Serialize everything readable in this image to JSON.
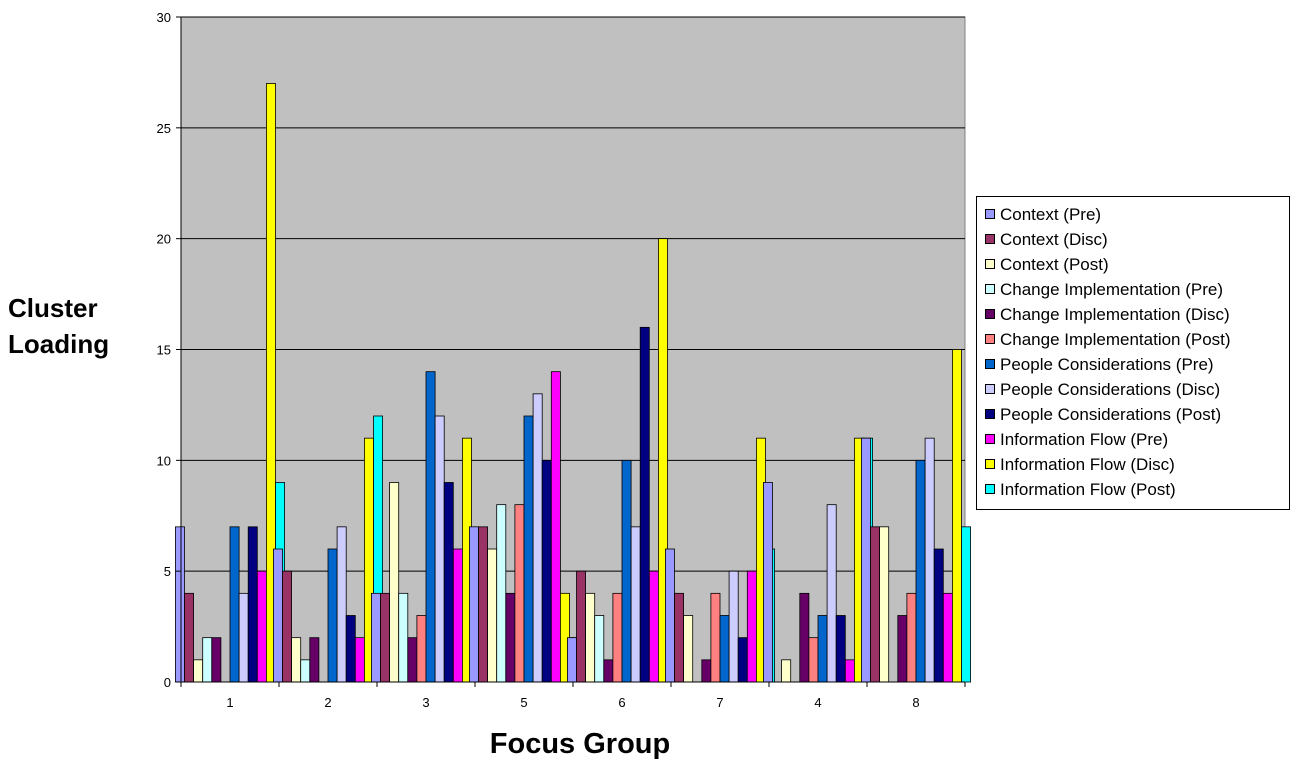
{
  "chart_data": {
    "type": "bar",
    "title": "",
    "xlabel": "Focus Group",
    "ylabel_lines": [
      "Cluster",
      "Loading"
    ],
    "categories": [
      "1",
      "2",
      "3",
      "5",
      "6",
      "7",
      "4",
      "8"
    ],
    "ylim": [
      0,
      30
    ],
    "yticks": [
      0,
      5,
      10,
      15,
      20,
      25,
      30
    ],
    "grid": true,
    "plot_background": "#C0C0C0",
    "legend_position": "right",
    "series": [
      {
        "name": "Context (Pre)",
        "color": "#9999FF",
        "values": [
          7,
          6,
          4,
          7,
          2,
          6,
          9,
          11
        ]
      },
      {
        "name": "Context (Disc)",
        "color": "#993366",
        "values": [
          4,
          5,
          4,
          7,
          5,
          4,
          0,
          7
        ]
      },
      {
        "name": "Context (Post)",
        "color": "#FFFFCC",
        "values": [
          1,
          2,
          9,
          6,
          4,
          3,
          1,
          7
        ]
      },
      {
        "name": "Change Implementation (Pre)",
        "color": "#CCFFFF",
        "values": [
          2,
          1,
          4,
          8,
          3,
          0,
          0,
          0
        ]
      },
      {
        "name": "Change Implementation (Disc)",
        "color": "#660066",
        "values": [
          2,
          2,
          2,
          4,
          1,
          1,
          4,
          3
        ]
      },
      {
        "name": "Change Implementation (Post)",
        "color": "#FF8080",
        "values": [
          0,
          0,
          3,
          8,
          4,
          4,
          2,
          4
        ]
      },
      {
        "name": "People Considerations (Pre)",
        "color": "#0066CC",
        "values": [
          7,
          6,
          14,
          12,
          10,
          3,
          3,
          10
        ]
      },
      {
        "name": "People Considerations (Disc)",
        "color": "#CCCCFF",
        "values": [
          4,
          7,
          12,
          13,
          7,
          5,
          8,
          11
        ]
      },
      {
        "name": "People Considerations (Post)",
        "color": "#000080",
        "values": [
          7,
          3,
          9,
          10,
          16,
          2,
          3,
          6
        ]
      },
      {
        "name": "Information Flow (Pre)",
        "color": "#FF00FF",
        "values": [
          5,
          2,
          6,
          14,
          5,
          5,
          1,
          4
        ]
      },
      {
        "name": "Information Flow (Disc)",
        "color": "#FFFF00",
        "values": [
          27,
          11,
          11,
          4,
          20,
          11,
          11,
          15
        ]
      },
      {
        "name": "Information Flow (Post)",
        "color": "#00FFFF",
        "values": [
          9,
          12,
          6,
          2,
          4,
          6,
          11,
          7
        ]
      }
    ]
  }
}
